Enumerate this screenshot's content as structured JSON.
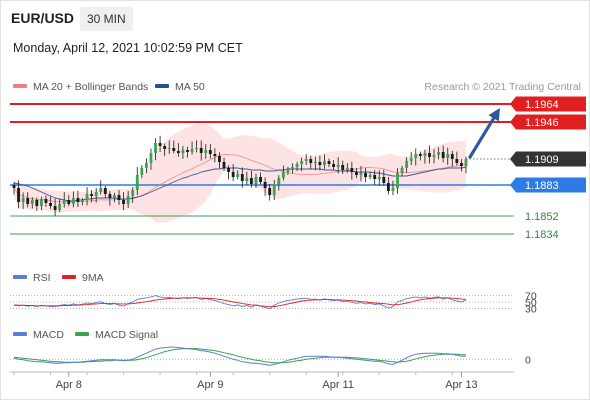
{
  "header": {
    "symbol": "EUR/USD",
    "timeframe": "30 MIN",
    "datetime": "Monday, April 12, 2021 10:02:59 PM CET"
  },
  "legend": {
    "items": [
      {
        "label": "MA 20 + Bollinger Bands",
        "color": "#f08080"
      },
      {
        "label": "MA 50",
        "color": "#2b4f8c"
      }
    ],
    "credit": "Research © 2021 Trading Central"
  },
  "colors": {
    "up": "#3aa44f",
    "down": "#1a1a1a",
    "band_fill": "#fde0e0",
    "ma20": "#f08080",
    "ma50": "#3b5aa0",
    "resistance": "#e02020",
    "support_blue": "#2e7be6",
    "support_green": "#3aa44f",
    "arrow": "#2c5aa0",
    "current": "#333333",
    "rsi": "#5a7fd6",
    "rsi_ma": "#e02020",
    "macd": "#5a7fd6",
    "macd_signal": "#3aa44f"
  },
  "chart_data": {
    "type": "candlestick",
    "y_range": [
      1.1822,
      1.1972
    ],
    "x_ticks": [
      "Apr 8",
      "Apr 9",
      "Apr 11",
      "Apr 13"
    ],
    "x_tick_index": [
      12,
      43,
      71,
      98
    ],
    "candle_count": 100,
    "price_levels": [
      {
        "value": 1.1964,
        "label": "1.1964",
        "kind": "resistance"
      },
      {
        "value": 1.1946,
        "label": "1.1946",
        "kind": "resistance"
      },
      {
        "value": 1.1909,
        "label": "1.1909",
        "kind": "current"
      },
      {
        "value": 1.1883,
        "label": "1.1883",
        "kind": "support_blue"
      },
      {
        "value": 1.1852,
        "label": "1.1852",
        "kind": "support_green"
      },
      {
        "value": 1.1834,
        "label": "1.1834",
        "kind": "support_green"
      }
    ],
    "forecast_arrow": {
      "from_index": 99,
      "from_price": 1.1909,
      "to_index": 106,
      "to_price": 1.196
    },
    "close": [
      1.188,
      1.1866,
      1.187,
      1.1864,
      1.1868,
      1.1862,
      1.1869,
      1.1865,
      1.1862,
      1.1858,
      1.1864,
      1.1868,
      1.1864,
      1.187,
      1.1866,
      1.1868,
      1.1874,
      1.1872,
      1.1876,
      1.188,
      1.1874,
      1.187,
      1.1873,
      1.1868,
      1.1864,
      1.1872,
      1.1878,
      1.1893,
      1.19,
      1.1905,
      1.1915,
      1.1925,
      1.1922,
      1.1919,
      1.192,
      1.1917,
      1.1915,
      1.1918,
      1.1916,
      1.1919,
      1.192,
      1.1915,
      1.1918,
      1.1914,
      1.1912,
      1.1906,
      1.19,
      1.1896,
      1.1891,
      1.1894,
      1.1887,
      1.189,
      1.1884,
      1.1891,
      1.1886,
      1.188,
      1.1873,
      1.1884,
      1.189,
      1.1896,
      1.1899,
      1.1901,
      1.1904,
      1.1907,
      1.1909,
      1.1905,
      1.1906,
      1.1903,
      1.1907,
      1.1904,
      1.1901,
      1.1903,
      1.1898,
      1.19,
      1.1896,
      1.1893,
      1.1895,
      1.1891,
      1.1893,
      1.1889,
      1.1891,
      1.1885,
      1.1877,
      1.188,
      1.1895,
      1.19,
      1.1907,
      1.191,
      1.1914,
      1.1912,
      1.1915,
      1.1911,
      1.1913,
      1.1916,
      1.191,
      1.1914,
      1.1909,
      1.1905,
      1.1902,
      1.1909
    ],
    "ma50": [
      1.1885,
      1.1884,
      1.1883,
      1.1882,
      1.188,
      1.1878,
      1.1876,
      1.1874,
      1.1872,
      1.187,
      1.1869,
      1.1868,
      1.1867,
      1.1867,
      1.1868,
      1.1868,
      1.1869,
      1.1869,
      1.187,
      1.187,
      1.187,
      1.187,
      1.187,
      1.1869,
      1.1869,
      1.1869,
      1.187,
      1.1871,
      1.1872,
      1.1874,
      1.1876,
      1.1878,
      1.188,
      1.1882,
      1.1884,
      1.1886,
      1.1888,
      1.189,
      1.1891,
      1.1893,
      1.1894,
      1.1896,
      1.1897,
      1.1898,
      1.1899,
      1.1899,
      1.19,
      1.19,
      1.19,
      1.19,
      1.1899,
      1.1899,
      1.1898,
      1.1898,
      1.1898,
      1.1897,
      1.1897,
      1.1897,
      1.1898,
      1.1898,
      1.1899,
      1.1899,
      1.1899,
      1.1899,
      1.1899,
      1.1899,
      1.1899,
      1.1899,
      1.1898,
      1.1898,
      1.1898,
      1.1897,
      1.1897,
      1.1897,
      1.1897,
      1.1896,
      1.1896,
      1.1896,
      1.1896,
      1.1895,
      1.1895,
      1.1894,
      1.1893,
      1.1892,
      1.1892,
      1.1892,
      1.1892,
      1.1893,
      1.1894,
      1.1895,
      1.1896,
      1.1897,
      1.1898,
      1.1899,
      1.1899,
      1.19,
      1.19,
      1.19,
      1.19,
      1.1901
    ],
    "rsi": [
      40,
      38,
      40,
      37,
      39,
      36,
      40,
      38,
      36,
      35,
      39,
      42,
      40,
      44,
      41,
      43,
      47,
      45,
      48,
      51,
      45,
      42,
      45,
      40,
      37,
      45,
      50,
      58,
      61,
      63,
      66,
      70,
      66,
      63,
      64,
      62,
      60,
      63,
      61,
      63,
      64,
      58,
      61,
      57,
      55,
      50,
      45,
      42,
      38,
      41,
      36,
      39,
      34,
      41,
      37,
      33,
      29,
      40,
      47,
      52,
      55,
      57,
      59,
      61,
      62,
      58,
      59,
      56,
      60,
      57,
      54,
      56,
      51,
      53,
      49,
      46,
      48,
      44,
      46,
      42,
      44,
      38,
      31,
      35,
      50,
      55,
      61,
      63,
      66,
      63,
      66,
      62,
      64,
      66,
      59,
      63,
      57,
      53,
      50,
      57
    ],
    "rsi_ma": [
      41,
      40,
      40,
      39,
      39,
      38,
      38,
      38,
      38,
      38,
      38,
      39,
      39,
      40,
      40,
      41,
      42,
      43,
      44,
      45,
      45,
      45,
      45,
      44,
      44,
      44,
      45,
      47,
      49,
      51,
      53,
      56,
      58,
      59,
      61,
      62,
      62,
      63,
      63,
      63,
      63,
      62,
      62,
      61,
      60,
      58,
      56,
      53,
      50,
      48,
      45,
      43,
      41,
      40,
      38,
      37,
      35,
      36,
      38,
      41,
      44,
      47,
      50,
      53,
      55,
      56,
      57,
      57,
      58,
      58,
      57,
      57,
      56,
      55,
      54,
      53,
      51,
      50,
      48,
      47,
      46,
      45,
      43,
      41,
      42,
      44,
      47,
      50,
      54,
      57,
      59,
      61,
      62,
      63,
      63,
      63,
      62,
      61,
      59,
      58
    ],
    "macd": [
      0.2,
      0.0,
      -0.1,
      -0.3,
      -0.4,
      -0.5,
      -0.5,
      -0.6,
      -0.7,
      -0.8,
      -0.8,
      -0.7,
      -0.7,
      -0.6,
      -0.6,
      -0.5,
      -0.4,
      -0.3,
      -0.2,
      -0.1,
      -0.1,
      -0.1,
      -0.1,
      -0.2,
      -0.3,
      -0.2,
      0.0,
      0.4,
      0.8,
      1.2,
      1.6,
      2.0,
      2.2,
      2.3,
      2.4,
      2.4,
      2.3,
      2.2,
      2.1,
      2.0,
      1.9,
      1.7,
      1.6,
      1.4,
      1.2,
      0.9,
      0.6,
      0.3,
      0.0,
      -0.2,
      -0.5,
      -0.6,
      -0.8,
      -0.8,
      -0.9,
      -1.0,
      -1.2,
      -1.0,
      -0.8,
      -0.5,
      -0.2,
      0.0,
      0.2,
      0.4,
      0.6,
      0.6,
      0.6,
      0.6,
      0.6,
      0.5,
      0.4,
      0.4,
      0.3,
      0.2,
      0.1,
      0.0,
      -0.1,
      -0.2,
      -0.3,
      -0.4,
      -0.4,
      -0.6,
      -0.9,
      -1.0,
      -0.6,
      -0.2,
      0.3,
      0.7,
      1.0,
      1.1,
      1.2,
      1.2,
      1.2,
      1.2,
      1.1,
      1.1,
      1.0,
      0.8,
      0.6,
      0.6
    ],
    "macd_signal": [
      0.4,
      0.3,
      0.2,
      0.1,
      0.0,
      -0.1,
      -0.2,
      -0.3,
      -0.4,
      -0.5,
      -0.5,
      -0.6,
      -0.6,
      -0.6,
      -0.6,
      -0.6,
      -0.5,
      -0.5,
      -0.4,
      -0.4,
      -0.3,
      -0.3,
      -0.2,
      -0.2,
      -0.2,
      -0.2,
      -0.2,
      -0.1,
      0.1,
      0.3,
      0.6,
      0.9,
      1.2,
      1.5,
      1.7,
      1.9,
      2.0,
      2.1,
      2.1,
      2.1,
      2.1,
      2.0,
      1.9,
      1.8,
      1.7,
      1.5,
      1.3,
      1.1,
      0.9,
      0.6,
      0.4,
      0.2,
      0.0,
      -0.2,
      -0.3,
      -0.5,
      -0.6,
      -0.7,
      -0.7,
      -0.7,
      -0.6,
      -0.5,
      -0.3,
      -0.2,
      0.0,
      0.1,
      0.2,
      0.3,
      0.4,
      0.4,
      0.4,
      0.4,
      0.4,
      0.4,
      0.3,
      0.3,
      0.2,
      0.1,
      0.0,
      -0.1,
      -0.2,
      -0.3,
      -0.4,
      -0.5,
      -0.6,
      -0.5,
      -0.4,
      -0.2,
      0.1,
      0.3,
      0.5,
      0.7,
      0.8,
      0.9,
      1.0,
      1.0,
      1.0,
      1.0,
      0.9,
      0.9
    ],
    "rsi_panel": {
      "legend": [
        {
          "label": "RSI",
          "color": "#5a7fd6"
        },
        {
          "label": "9MA",
          "color": "#e02020"
        }
      ],
      "levels": [
        70,
        50,
        30
      ],
      "range": [
        0,
        100
      ]
    },
    "macd_panel": {
      "legend": [
        {
          "label": "MACD",
          "color": "#5a7fd6"
        },
        {
          "label": "MACD Signal",
          "color": "#3aa44f"
        }
      ],
      "levels": [
        0
      ],
      "range": [
        -2.5,
        3.0
      ]
    }
  }
}
